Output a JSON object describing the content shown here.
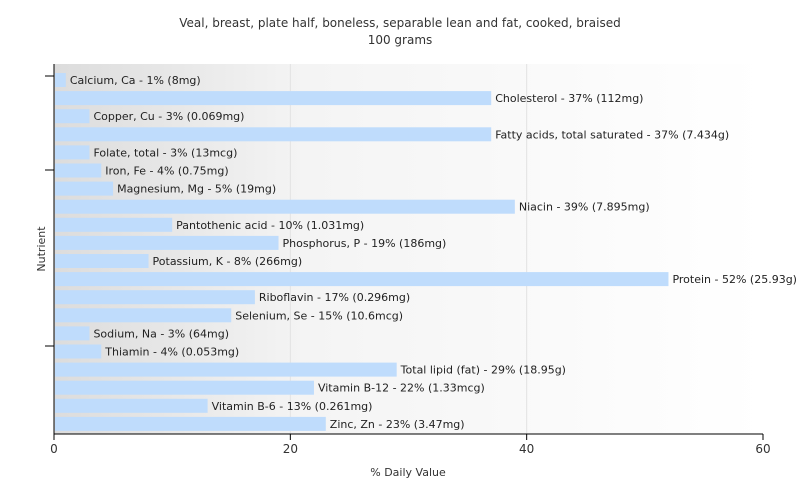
{
  "chart_data": {
    "type": "bar",
    "orientation": "horizontal",
    "title": "Veal, breast, plate half, boneless, separable lean and fat, cooked, braised",
    "subtitle": "100 grams",
    "xlabel": "% Daily Value",
    "ylabel": "Nutrient",
    "xlim": [
      0,
      60
    ],
    "xticks": [
      "0",
      "20",
      "40",
      "60"
    ],
    "grid": true,
    "bar_color": "#bfdcfc",
    "bars": [
      {
        "name": "Calcium, Ca",
        "value": 1,
        "label": "Calcium, Ca - 1% (8mg)"
      },
      {
        "name": "Cholesterol",
        "value": 37,
        "label": "Cholesterol - 37% (112mg)"
      },
      {
        "name": "Copper, Cu",
        "value": 3,
        "label": "Copper, Cu - 3% (0.069mg)"
      },
      {
        "name": "Fatty acids, total saturated",
        "value": 37,
        "label": "Fatty acids, total saturated - 37% (7.434g)"
      },
      {
        "name": "Folate, total",
        "value": 3,
        "label": "Folate, total - 3% (13mcg)"
      },
      {
        "name": "Iron, Fe",
        "value": 4,
        "label": "Iron, Fe - 4% (0.75mg)"
      },
      {
        "name": "Magnesium, Mg",
        "value": 5,
        "label": "Magnesium, Mg - 5% (19mg)"
      },
      {
        "name": "Niacin",
        "value": 39,
        "label": "Niacin - 39% (7.895mg)"
      },
      {
        "name": "Pantothenic acid",
        "value": 10,
        "label": "Pantothenic acid - 10% (1.031mg)"
      },
      {
        "name": "Phosphorus, P",
        "value": 19,
        "label": "Phosphorus, P - 19% (186mg)"
      },
      {
        "name": "Potassium, K",
        "value": 8,
        "label": "Potassium, K - 8% (266mg)"
      },
      {
        "name": "Protein",
        "value": 52,
        "label": "Protein - 52% (25.93g)"
      },
      {
        "name": "Riboflavin",
        "value": 17,
        "label": "Riboflavin - 17% (0.296mg)"
      },
      {
        "name": "Selenium, Se",
        "value": 15,
        "label": "Selenium, Se - 15% (10.6mcg)"
      },
      {
        "name": "Sodium, Na",
        "value": 3,
        "label": "Sodium, Na - 3% (64mg)"
      },
      {
        "name": "Thiamin",
        "value": 4,
        "label": "Thiamin - 4% (0.053mg)"
      },
      {
        "name": "Total lipid (fat)",
        "value": 29,
        "label": "Total lipid (fat) - 29% (18.95g)"
      },
      {
        "name": "Vitamin B-12",
        "value": 22,
        "label": "Vitamin B-12 - 22% (1.33mcg)"
      },
      {
        "name": "Vitamin B-6",
        "value": 13,
        "label": "Vitamin B-6 - 13% (0.261mg)"
      },
      {
        "name": "Zinc, Zn",
        "value": 23,
        "label": "Zinc, Zn - 23% (3.47mg)"
      }
    ]
  }
}
